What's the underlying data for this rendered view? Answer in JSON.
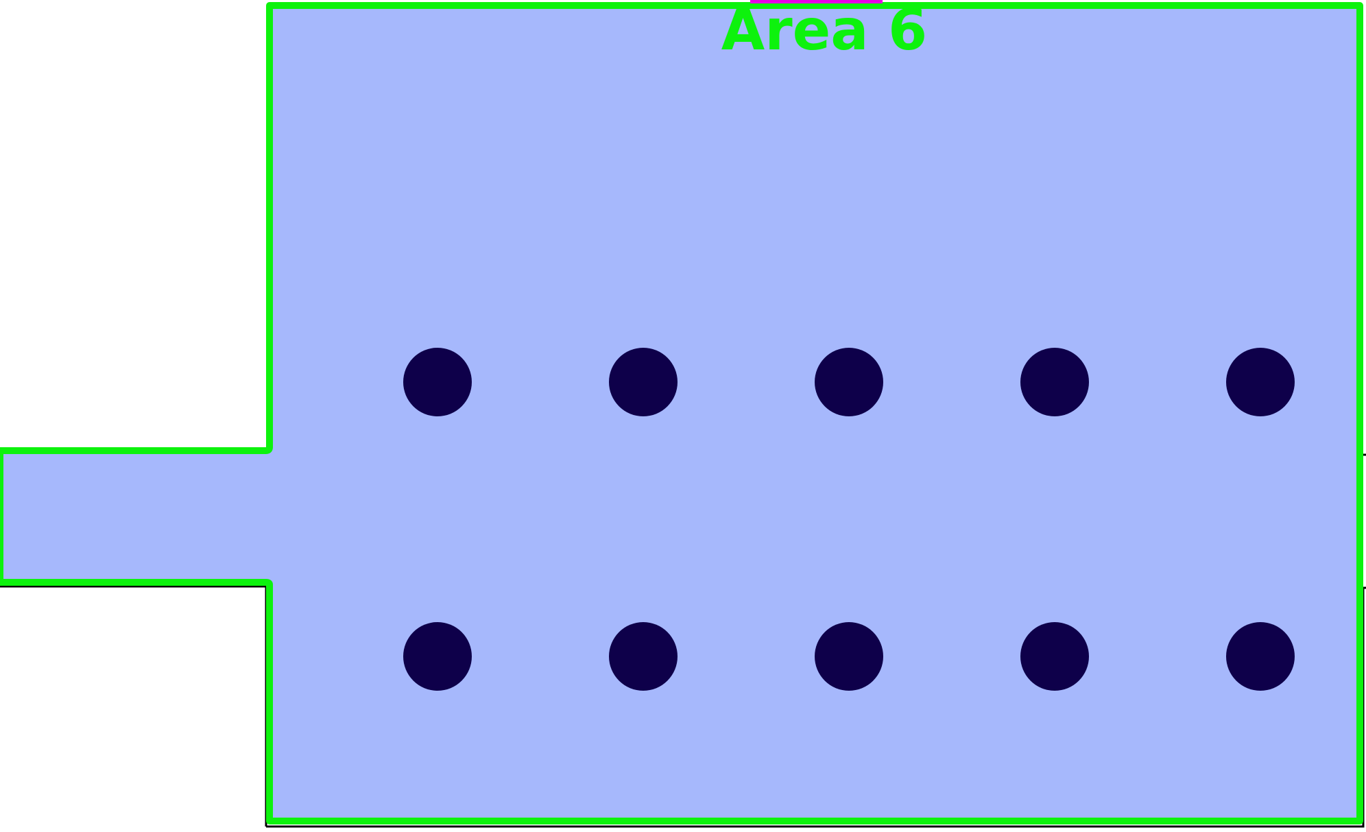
{
  "area": {
    "label": "Area 6",
    "fill_color": "#a6b8fc",
    "border_color": "#0df20d",
    "door_color": "#e600e6",
    "shadow_color": "#000000"
  },
  "pillars": {
    "color": "#0e004a",
    "rows": 2,
    "per_row": 5
  }
}
